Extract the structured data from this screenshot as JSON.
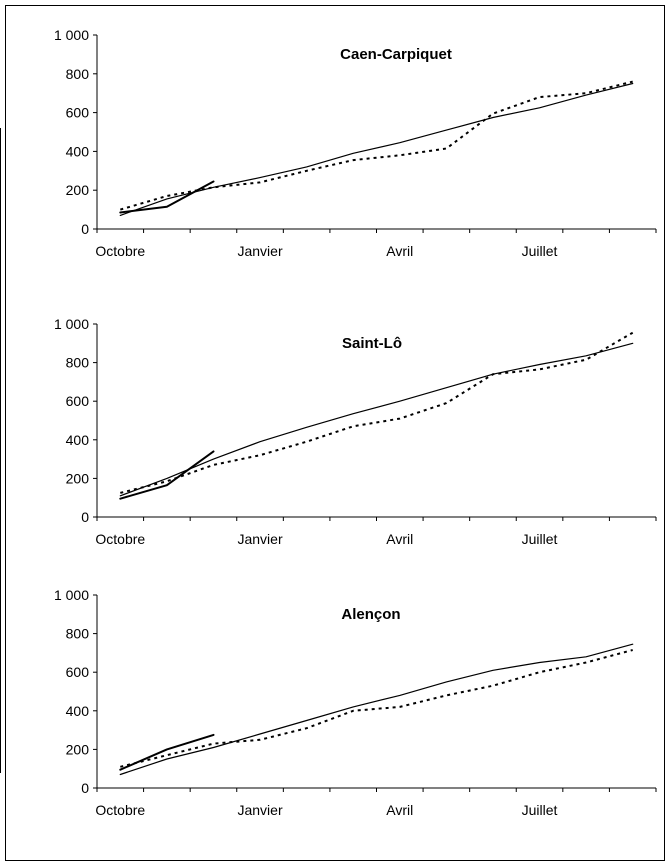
{
  "chart_data": [
    {
      "type": "line",
      "title": "Caen-Carpiquet",
      "xlabel": "",
      "ylabel": "",
      "ylim": [
        0,
        1000
      ],
      "yticks": [
        "0",
        "200",
        "400",
        "600",
        "800",
        "1 000"
      ],
      "ytick_values": [
        0,
        200,
        400,
        600,
        800,
        1000
      ],
      "xticks": [
        "Octobre",
        "Janvier",
        "Avril",
        "Juillet"
      ],
      "xtick_positions": [
        1,
        4,
        7,
        10
      ],
      "xlim": [
        0.5,
        12.5
      ],
      "series": [
        {
          "style": "thin-solid",
          "x": [
            1,
            2,
            3,
            4,
            5,
            6,
            7,
            8,
            9,
            10,
            11,
            12
          ],
          "values": [
            70,
            155,
            215,
            265,
            320,
            390,
            445,
            510,
            575,
            625,
            690,
            750
          ]
        },
        {
          "style": "dotted",
          "x": [
            1,
            2,
            3,
            4,
            5,
            6,
            7,
            8,
            9,
            10,
            11,
            12
          ],
          "values": [
            100,
            170,
            215,
            240,
            300,
            355,
            380,
            415,
            595,
            680,
            700,
            760
          ]
        },
        {
          "style": "thick-solid",
          "x": [
            1,
            2,
            3
          ],
          "values": [
            85,
            115,
            245
          ]
        }
      ]
    },
    {
      "type": "line",
      "title": "Saint-Lô",
      "xlabel": "",
      "ylabel": "",
      "ylim": [
        0,
        1000
      ],
      "yticks": [
        "0",
        "200",
        "400",
        "600",
        "800",
        "1 000"
      ],
      "ytick_values": [
        0,
        200,
        400,
        600,
        800,
        1000
      ],
      "xticks": [
        "Octobre",
        "Janvier",
        "Avril",
        "Juillet"
      ],
      "xtick_positions": [
        1,
        4,
        7,
        10
      ],
      "xlim": [
        0.5,
        12.5
      ],
      "series": [
        {
          "style": "thin-solid",
          "x": [
            1,
            2,
            3,
            4,
            5,
            6,
            7,
            8,
            9,
            10,
            11,
            12
          ],
          "values": [
            110,
            200,
            300,
            390,
            465,
            535,
            600,
            670,
            740,
            790,
            835,
            900
          ]
        },
        {
          "style": "dotted",
          "x": [
            1,
            2,
            3,
            4,
            5,
            6,
            7,
            8,
            9,
            10,
            11,
            12
          ],
          "values": [
            125,
            185,
            270,
            320,
            390,
            470,
            510,
            590,
            740,
            765,
            815,
            955
          ]
        },
        {
          "style": "thick-solid",
          "x": [
            1,
            2,
            3
          ],
          "values": [
            95,
            165,
            340
          ]
        }
      ]
    },
    {
      "type": "line",
      "title": "Alençon",
      "xlabel": "",
      "ylabel": "",
      "ylim": [
        0,
        1000
      ],
      "yticks": [
        "0",
        "200",
        "400",
        "600",
        "800",
        "1 000"
      ],
      "ytick_values": [
        0,
        200,
        400,
        600,
        800,
        1000
      ],
      "xticks": [
        "Octobre",
        "Janvier",
        "Avril",
        "Juillet"
      ],
      "xtick_positions": [
        1,
        4,
        7,
        10
      ],
      "xlim": [
        0.5,
        12.5
      ],
      "series": [
        {
          "style": "thin-solid",
          "x": [
            1,
            2,
            3,
            4,
            5,
            6,
            7,
            8,
            9,
            10,
            11,
            12
          ],
          "values": [
            70,
            150,
            210,
            280,
            350,
            420,
            480,
            550,
            610,
            650,
            680,
            745
          ]
        },
        {
          "style": "dotted",
          "x": [
            1,
            2,
            3,
            4,
            5,
            6,
            7,
            8,
            9,
            10,
            11,
            12
          ],
          "values": [
            110,
            170,
            230,
            250,
            310,
            400,
            420,
            480,
            530,
            600,
            650,
            715
          ]
        },
        {
          "style": "thick-solid",
          "x": [
            1,
            2,
            3
          ],
          "values": [
            95,
            200,
            275
          ]
        }
      ]
    }
  ]
}
